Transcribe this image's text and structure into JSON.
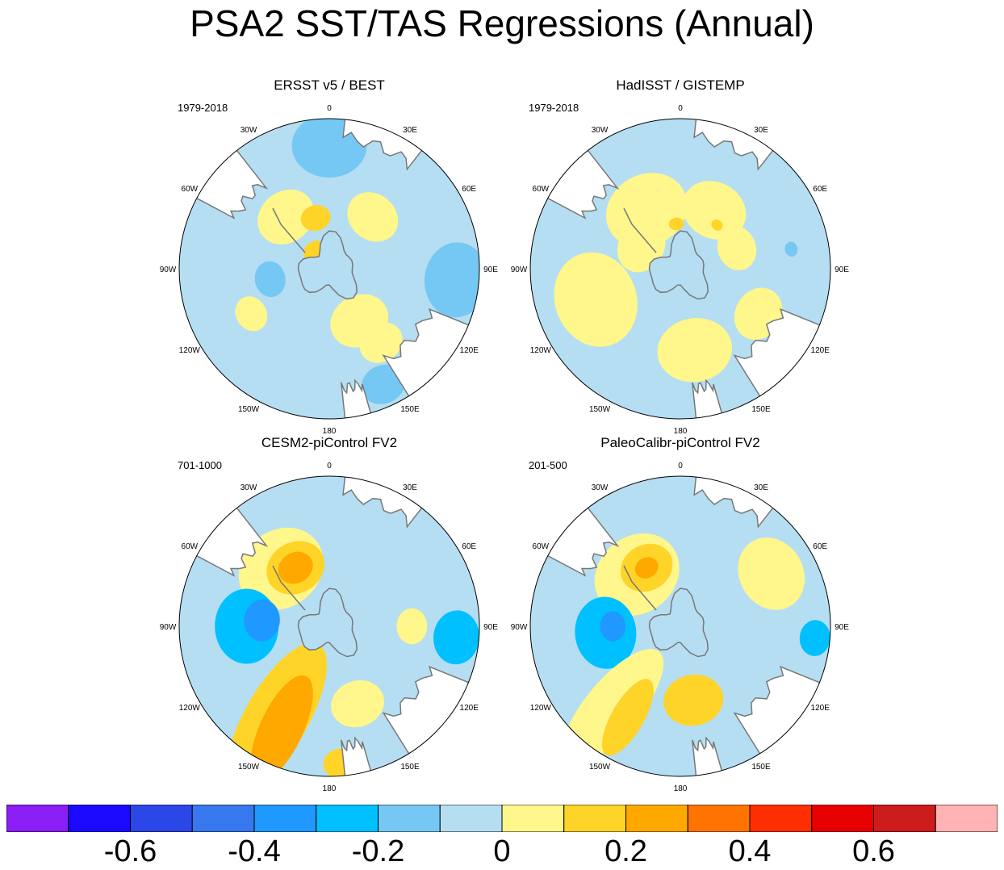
{
  "title": "PSA2 SST/TAS Regressions (Annual)",
  "chart_data": {
    "type": "polar contour map (filled)",
    "projection": "Southern Hemisphere polar stereographic",
    "lon_labels": [
      "0",
      "30E",
      "60E",
      "90E",
      "120E",
      "150E",
      "180",
      "150W",
      "120W",
      "90W",
      "60W",
      "30W"
    ],
    "panels": [
      {
        "title": "ERSST v5 / BEST",
        "years": "1979-2018",
        "summary": "Mostly weak anomalies (-0.1 to 0.1); positive 0.1-0.2 over Antarctic Peninsula / Weddell sector; negative -0.2 to -0.1 off 90E and south of Australia",
        "blobs": [
          {
            "lon": 0,
            "r": 0.82,
            "size": 0.25,
            "rot": 0,
            "level": -1
          },
          {
            "lon": -40,
            "r": 0.45,
            "size": 0.2,
            "rot": 0,
            "level": 1
          },
          {
            "lon": -15,
            "r": 0.35,
            "size": 0.1,
            "rot": 0,
            "level": 2
          },
          {
            "lon": -40,
            "r": 0.15,
            "size": 0.08,
            "rot": 0,
            "level": 2
          },
          {
            "lon": 40,
            "r": 0.45,
            "size": 0.18,
            "rot": 0,
            "level": 1
          },
          {
            "lon": 95,
            "r": 0.85,
            "size": 0.25,
            "rot": 0,
            "level": -1
          },
          {
            "lon": 150,
            "r": 0.4,
            "size": 0.2,
            "rot": 0,
            "level": 1
          },
          {
            "lon": 145,
            "r": 0.6,
            "size": 0.15,
            "rot": 0,
            "level": 1
          },
          {
            "lon": 155,
            "r": 0.85,
            "size": 0.15,
            "rot": 0,
            "level": -1
          },
          {
            "lon": -120,
            "r": 0.6,
            "size": 0.12,
            "rot": 0,
            "level": 1
          },
          {
            "lon": -100,
            "r": 0.4,
            "size": 0.12,
            "rot": 0,
            "level": -1
          }
        ]
      },
      {
        "title": "HadISST / GISTEMP",
        "years": "1979-2018",
        "summary": "Patchy weak positive 0-0.1 across Southern Ocean, small 0.1-0.2 spots; weak negative -0.1 to 0 around Antarctica",
        "blobs": [
          {
            "lon": -30,
            "r": 0.45,
            "size": 0.28,
            "rot": 0,
            "level": 1
          },
          {
            "lon": 30,
            "r": 0.45,
            "size": 0.22,
            "rot": 0,
            "level": 1
          },
          {
            "lon": -110,
            "r": 0.6,
            "size": 0.32,
            "rot": 0,
            "level": 1
          },
          {
            "lon": 170,
            "r": 0.55,
            "size": 0.25,
            "rot": 0,
            "level": 1
          },
          {
            "lon": 120,
            "r": 0.6,
            "size": 0.18,
            "rot": 0,
            "level": 1
          },
          {
            "lon": 70,
            "r": 0.4,
            "size": 0.15,
            "rot": 0,
            "level": 1
          },
          {
            "lon": -60,
            "r": 0.3,
            "size": 0.18,
            "rot": 0,
            "level": 1
          },
          {
            "lon": 80,
            "r": 0.75,
            "size": 0.05,
            "rot": 0,
            "level": -1
          },
          {
            "lon": -5,
            "r": 0.3,
            "size": 0.05,
            "rot": 0,
            "level": 2
          },
          {
            "lon": 40,
            "r": 0.38,
            "size": 0.04,
            "rot": 0,
            "level": 2
          }
        ]
      },
      {
        "title": "CESM2-piControl FV2",
        "years": "701-1000",
        "summary": "Positive 0.2-0.3 over Weddell Sea region and a 0.2-0.3 arc in the South Pacific (150W-180); negative -0.3 to -0.2 over Amundsen-Bellingshausen Sea",
        "blobs": [
          {
            "lon": -40,
            "r": 0.5,
            "size": 0.3,
            "rot": 0,
            "level": 1
          },
          {
            "lon": -30,
            "r": 0.45,
            "size": 0.2,
            "rot": 0,
            "level": 2
          },
          {
            "lon": -30,
            "r": 0.45,
            "size": 0.12,
            "rot": 0,
            "level": 3
          },
          {
            "lon": -90,
            "r": 0.55,
            "size": 0.25,
            "rot": 0,
            "level": -2
          },
          {
            "lon": -85,
            "r": 0.45,
            "size": 0.14,
            "rot": 0,
            "level": -3
          },
          {
            "lon": -150,
            "r": 0.7,
            "size": 0.35,
            "rot": 0.7,
            "level": 2
          },
          {
            "lon": -155,
            "r": 0.75,
            "size": 0.24,
            "rot": 0.7,
            "level": 3
          },
          {
            "lon": 160,
            "r": 0.55,
            "size": 0.18,
            "rot": 0,
            "level": 1
          },
          {
            "lon": 95,
            "r": 0.85,
            "size": 0.18,
            "rot": 0,
            "level": -2
          },
          {
            "lon": 90,
            "r": 0.55,
            "size": 0.12,
            "rot": 0,
            "level": 1
          },
          {
            "lon": 175,
            "r": 0.92,
            "size": 0.12,
            "rot": 0,
            "level": 2
          }
        ]
      },
      {
        "title": "PaleoCalibr-piControl FV2",
        "years": "201-500",
        "summary": "Positive 0.2-0.3 over Weddell Sea; 0.1-0.2 in South Pacific near 150W-180; negative -0.3 to -0.2 in Amundsen-Bellingshausen Sea",
        "blobs": [
          {
            "lon": -40,
            "r": 0.45,
            "size": 0.3,
            "rot": 0,
            "level": 1
          },
          {
            "lon": -30,
            "r": 0.45,
            "size": 0.18,
            "rot": 0,
            "level": 2
          },
          {
            "lon": -30,
            "r": 0.45,
            "size": 0.08,
            "rot": 0,
            "level": 3
          },
          {
            "lon": -95,
            "r": 0.5,
            "size": 0.24,
            "rot": 0,
            "level": -2
          },
          {
            "lon": -90,
            "r": 0.45,
            "size": 0.1,
            "rot": 0,
            "level": -3
          },
          {
            "lon": -140,
            "r": 0.7,
            "size": 0.3,
            "rot": 0.7,
            "level": 1
          },
          {
            "lon": -150,
            "r": 0.7,
            "size": 0.18,
            "rot": 0.7,
            "level": 2
          },
          {
            "lon": 170,
            "r": 0.5,
            "size": 0.2,
            "rot": 0,
            "level": 2
          },
          {
            "lon": 60,
            "r": 0.7,
            "size": 0.25,
            "rot": 0,
            "level": 1
          },
          {
            "lon": 95,
            "r": 0.9,
            "size": 0.12,
            "rot": 0,
            "level": -2
          }
        ]
      }
    ],
    "colorbar": {
      "levels": [
        -0.7,
        -0.6,
        -0.5,
        -0.4,
        -0.3,
        -0.2,
        -0.1,
        0,
        0.1,
        0.2,
        0.3,
        0.4,
        0.5,
        0.6,
        0.7
      ],
      "colors": [
        "#8b1df5",
        "#1b08ff",
        "#2c47e8",
        "#3878ee",
        "#1f99ff",
        "#00c0ff",
        "#76c8f4",
        "#b5def2",
        "#fff68c",
        "#ffd429",
        "#ffa800",
        "#ff7400",
        "#ff2e00",
        "#e80000",
        "#cc1c1c",
        "#ffb3b3"
      ],
      "tick_labels": [
        "-0.6",
        "-0.4",
        "-0.2",
        "0",
        "0.2",
        "0.4",
        "0.6"
      ],
      "tick_values": [
        -0.6,
        -0.4,
        -0.2,
        0,
        0.2,
        0.4,
        0.6
      ]
    }
  }
}
